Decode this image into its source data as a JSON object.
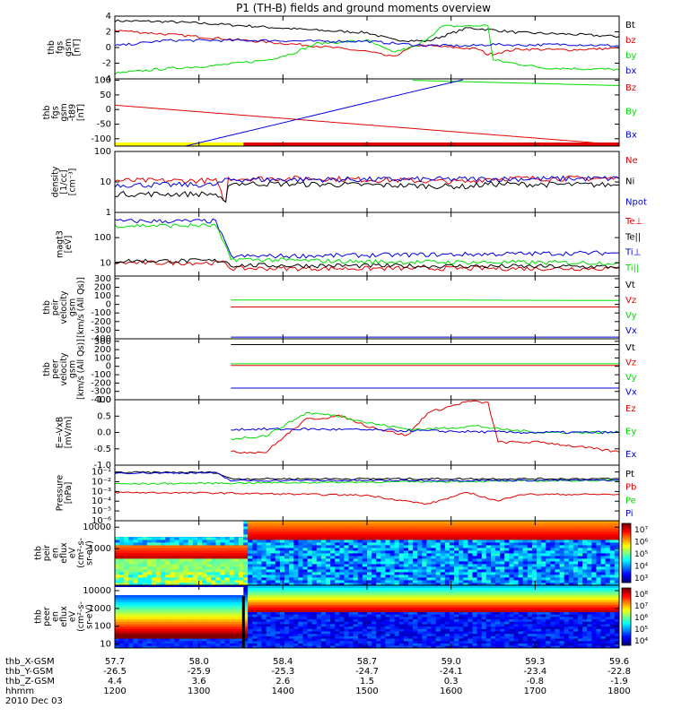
{
  "title": "P1 (TH-B) fields and ground moments overview",
  "date_label": "2010 Dec 03",
  "colors": {
    "black": "#000000",
    "red": "#e00000",
    "green": "#00dd00",
    "blue": "#0000e0",
    "yellow": "#ffff00"
  },
  "footer": {
    "rows": [
      {
        "label": "thb_X-GSM",
        "values": [
          "57.7",
          "58.0",
          "58.4",
          "58.7",
          "59.0",
          "59.3",
          "59.6"
        ]
      },
      {
        "label": "thb_Y-GSM",
        "values": [
          "-26.5",
          "-25.9",
          "-25.3",
          "-24.7",
          "-24.1",
          "-23.4",
          "-22.8"
        ]
      },
      {
        "label": "thb_Z-GSM",
        "values": [
          "4.4",
          "3.6",
          "2.6",
          "1.5",
          "0.3",
          "-0.8",
          "-1.9"
        ]
      },
      {
        "label": "hhmm",
        "values": [
          "1200",
          "1300",
          "1400",
          "1500",
          "1600",
          "1700",
          "1800"
        ]
      }
    ]
  },
  "chart_data": [
    {
      "id": "fgs",
      "type": "line",
      "ylabel": [
        "thb",
        "fgs",
        "gsm",
        "[nT]"
      ],
      "ylim": [
        -4,
        4
      ],
      "ticks": [
        "4",
        "2",
        "0",
        "-2",
        "-4"
      ],
      "x": [
        "1200",
        "1800"
      ],
      "series": [
        {
          "name": "Bt",
          "color": "#000000",
          "values": [
            [
              0,
              3.4
            ],
            [
              0.1,
              3.3
            ],
            [
              0.2,
              3.0
            ],
            [
              0.3,
              2.6
            ],
            [
              0.4,
              2.2
            ],
            [
              0.5,
              1.9
            ],
            [
              0.55,
              1.0
            ],
            [
              0.62,
              0.8
            ],
            [
              0.7,
              2.5
            ],
            [
              0.74,
              2.3
            ],
            [
              0.8,
              1.9
            ],
            [
              0.9,
              1.7
            ],
            [
              1,
              1.4
            ]
          ]
        },
        {
          "name": "bz",
          "color": "#e00000",
          "values": [
            [
              0,
              2.2
            ],
            [
              0.1,
              1.7
            ],
            [
              0.2,
              1.2
            ],
            [
              0.3,
              0.7
            ],
            [
              0.4,
              0.2
            ],
            [
              0.5,
              -0.5
            ],
            [
              0.55,
              -1.2
            ],
            [
              0.6,
              0.3
            ],
            [
              0.72,
              -0.2
            ],
            [
              0.74,
              -0.9
            ],
            [
              0.8,
              -0.2
            ],
            [
              0.9,
              -0.3
            ],
            [
              1,
              -0.1
            ]
          ]
        },
        {
          "name": "by",
          "color": "#00dd00",
          "values": [
            [
              0,
              -3.3
            ],
            [
              0.1,
              -2.7
            ],
            [
              0.2,
              -2.3
            ],
            [
              0.3,
              -1.6
            ],
            [
              0.35,
              -0.8
            ],
            [
              0.4,
              0.5
            ],
            [
              0.5,
              0.9
            ],
            [
              0.55,
              -0.6
            ],
            [
              0.6,
              0.2
            ],
            [
              0.65,
              2.7
            ],
            [
              0.74,
              2.8
            ],
            [
              0.75,
              -1.6
            ],
            [
              0.85,
              -2.6
            ],
            [
              1,
              -2.8
            ]
          ]
        },
        {
          "name": "bx",
          "color": "#0000e0",
          "values": [
            [
              0,
              0.2
            ],
            [
              0.1,
              0.9
            ],
            [
              0.2,
              0.9
            ],
            [
              0.3,
              0.9
            ],
            [
              0.4,
              0.8
            ],
            [
              0.5,
              0.8
            ],
            [
              0.6,
              0.3
            ],
            [
              0.7,
              0.2
            ],
            [
              0.75,
              0.4
            ],
            [
              0.8,
              0.3
            ],
            [
              0.9,
              0.4
            ],
            [
              1,
              0.2
            ]
          ]
        }
      ]
    },
    {
      "id": "fgs_t89",
      "type": "line",
      "ylabel": [
        "thb",
        "fgs",
        "gsm",
        "-t89",
        "[nT]"
      ],
      "ylim": [
        -125,
        105
      ],
      "ticks": [
        "100",
        "50",
        "0",
        "-50",
        "-100"
      ],
      "series": [
        {
          "name": "Bz",
          "color": "#e00000",
          "values": [
            [
              0,
              15
            ],
            [
              1,
              -120
            ]
          ]
        },
        {
          "name": "By",
          "color": "#00dd00",
          "values": [
            [
              0.59,
              100
            ],
            [
              1,
              82
            ]
          ]
        },
        {
          "name": "Bx",
          "color": "#0000e0",
          "values": [
            [
              0.14,
              -125
            ],
            [
              0.69,
              102
            ]
          ]
        }
      ]
    },
    {
      "id": "density",
      "type": "line",
      "ylabel": [
        "density",
        "[1/cc]",
        "[cm^-3]"
      ],
      "ylim": [
        1,
        100
      ],
      "scale": "log",
      "ticks": [
        "100",
        "10",
        "1"
      ],
      "series": [
        {
          "name": "Ne",
          "color": "#e00000",
          "values": [
            [
              0,
              11
            ],
            [
              0.2,
              11
            ],
            [
              0.22,
              2.0
            ],
            [
              0.225,
              13
            ],
            [
              0.4,
              13
            ],
            [
              0.7,
              10
            ],
            [
              0.74,
              13
            ],
            [
              1,
              13
            ]
          ]
        },
        {
          "name": "Ni",
          "color": "#000000",
          "values": [
            [
              0,
              4
            ],
            [
              0.2,
              4
            ],
            [
              0.22,
              1.8
            ],
            [
              0.225,
              9
            ],
            [
              0.5,
              8
            ],
            [
              0.7,
              7
            ],
            [
              0.74,
              8.5
            ],
            [
              1,
              8
            ]
          ]
        },
        {
          "name": "Npot",
          "color": "#0000e0",
          "values": [
            [
              0,
              8
            ],
            [
              0.2,
              8
            ],
            [
              0.225,
              12
            ],
            [
              0.5,
              12
            ],
            [
              1,
              13
            ]
          ]
        }
      ]
    },
    {
      "id": "temp",
      "type": "line",
      "ylabel": [
        "magt3",
        "[eV]"
      ],
      "ylim": [
        3,
        1000
      ],
      "scale": "log",
      "ticks": [
        "100",
        "10"
      ],
      "series": [
        {
          "name": "Te⊥",
          "color": "#e00000",
          "values": [
            [
              0,
              10
            ],
            [
              0.22,
              10
            ],
            [
              0.23,
              6
            ],
            [
              1,
              6
            ]
          ]
        },
        {
          "name": "Te||",
          "color": "#000000",
          "values": [
            [
              0,
              12
            ],
            [
              0.22,
              12
            ],
            [
              0.23,
              8
            ],
            [
              1,
              7
            ]
          ]
        },
        {
          "name": "Ti⊥",
          "color": "#0000e0",
          "values": [
            [
              0,
              450
            ],
            [
              0.2,
              450
            ],
            [
              0.23,
              18
            ],
            [
              0.5,
              20
            ],
            [
              1,
              25
            ]
          ]
        },
        {
          "name": "Ti||",
          "color": "#00dd00",
          "values": [
            [
              0,
              300
            ],
            [
              0.2,
              300
            ],
            [
              0.23,
              14
            ],
            [
              0.5,
              11
            ],
            [
              1,
              10
            ]
          ]
        }
      ]
    },
    {
      "id": "peir",
      "type": "line",
      "ylabel": [
        "thb",
        "peir",
        "velocity",
        "gsm",
        "[km/s (All Qs)]"
      ],
      "ylim": [
        -400,
        330
      ],
      "ticks": [
        "300",
        "200",
        "100",
        "0",
        "-100",
        "-200",
        "-300",
        "-400"
      ],
      "series": [
        {
          "name": "Vt",
          "color": "#000000",
          "values": [
            [
              0.23,
              330
            ],
            [
              1,
              330
            ]
          ]
        },
        {
          "name": "Vz",
          "color": "#e00000",
          "values": [
            [
              0.23,
              -30
            ],
            [
              1,
              -30
            ]
          ]
        },
        {
          "name": "Vy",
          "color": "#00dd00",
          "values": [
            [
              0.23,
              50
            ],
            [
              0.7,
              50
            ],
            [
              1,
              45
            ]
          ]
        },
        {
          "name": "Vx",
          "color": "#0000e0",
          "values": [
            [
              0.23,
              -380
            ],
            [
              1,
              -380
            ]
          ]
        }
      ]
    },
    {
      "id": "peer",
      "type": "line",
      "ylabel": [
        "thb",
        "peer",
        "velocity",
        "gsm",
        "[km/s (All Qs)]"
      ],
      "ylim": [
        -400,
        330
      ],
      "ticks": [
        "300",
        "200",
        "100",
        "0",
        "-100",
        "-200",
        "-300",
        "-400"
      ],
      "series": [
        {
          "name": "Vt",
          "color": "#000000",
          "values": [
            [
              0.23,
              260
            ],
            [
              1,
              260
            ]
          ]
        },
        {
          "name": "Vz",
          "color": "#e00000",
          "values": [
            [
              0.23,
              10
            ],
            [
              1,
              10
            ]
          ]
        },
        {
          "name": "Vy",
          "color": "#00dd00",
          "values": [
            [
              0.23,
              30
            ],
            [
              1,
              30
            ]
          ]
        },
        {
          "name": "Vx",
          "color": "#0000e0",
          "values": [
            [
              0.23,
              -260
            ],
            [
              1,
              -260
            ]
          ]
        }
      ]
    },
    {
      "id": "efield",
      "type": "line",
      "ylabel": [
        "E=-VxB",
        "[mV/m]"
      ],
      "ylim": [
        -1,
        1
      ],
      "ticks": [
        "1.0",
        "0.5",
        "0.0",
        "-0.5",
        "-1.0"
      ],
      "series": [
        {
          "name": "Ez",
          "color": "#e00000",
          "values": [
            [
              0.23,
              -0.6
            ],
            [
              0.3,
              -0.6
            ],
            [
              0.33,
              -0.2
            ],
            [
              0.38,
              0.4
            ],
            [
              0.45,
              0.5
            ],
            [
              0.5,
              0.2
            ],
            [
              0.58,
              -0.1
            ],
            [
              0.62,
              0.6
            ],
            [
              0.7,
              0.95
            ],
            [
              0.74,
              0.9
            ],
            [
              0.76,
              -0.3
            ],
            [
              0.85,
              -0.3
            ],
            [
              1,
              -0.6
            ]
          ]
        },
        {
          "name": "Ey",
          "color": "#00dd00",
          "values": [
            [
              0.23,
              -0.2
            ],
            [
              0.3,
              -0.1
            ],
            [
              0.38,
              0.6
            ],
            [
              0.45,
              0.5
            ],
            [
              0.5,
              0.3
            ],
            [
              0.58,
              0.1
            ],
            [
              0.62,
              0.1
            ],
            [
              0.72,
              0.2
            ],
            [
              0.76,
              0.1
            ],
            [
              0.85,
              0.0
            ],
            [
              1,
              0.0
            ]
          ]
        },
        {
          "name": "Ex",
          "color": "#0000e0",
          "values": [
            [
              0.23,
              0.1
            ],
            [
              0.4,
              0.1
            ],
            [
              0.6,
              0.05
            ],
            [
              0.8,
              0.0
            ],
            [
              1,
              0.0
            ]
          ]
        }
      ]
    },
    {
      "id": "pressure",
      "type": "line",
      "ylabel": [
        "Pressure",
        "[nPa]"
      ],
      "ylim": [
        1e-06,
        0.5
      ],
      "scale": "log",
      "ticks": [
        "10^0",
        "10^-1",
        "10^-2",
        "10^-3",
        "10^-4",
        "10^-5",
        "10^-6"
      ],
      "series": [
        {
          "name": "Pt",
          "color": "#000000",
          "values": [
            [
              0,
              0.09
            ],
            [
              0.2,
              0.09
            ],
            [
              0.23,
              0.02
            ],
            [
              1,
              0.02
            ]
          ]
        },
        {
          "name": "Pb",
          "color": "#e00000",
          "values": [
            [
              0,
              0.0008
            ],
            [
              0.2,
              0.0007
            ],
            [
              0.5,
              0.0004
            ],
            [
              0.62,
              5e-05
            ],
            [
              0.7,
              0.0008
            ],
            [
              0.76,
              0.0001
            ],
            [
              0.8,
              0.0005
            ],
            [
              1,
              0.0005
            ]
          ]
        },
        {
          "name": "Pe",
          "color": "#00dd00",
          "values": [
            [
              0,
              0.006
            ],
            [
              1,
              0.014
            ]
          ]
        },
        {
          "name": "Pi",
          "color": "#0000e0",
          "values": [
            [
              0,
              0.08
            ],
            [
              0.2,
              0.08
            ],
            [
              0.23,
              0.013
            ],
            [
              1,
              0.014
            ]
          ]
        }
      ]
    },
    {
      "id": "peir_spec",
      "type": "heatmap",
      "ylabel": [
        "thb",
        "peir",
        "en",
        "eflux",
        "eV",
        "(cm^2-s-",
        "sr-eV)"
      ],
      "ylim": [
        20,
        20000
      ],
      "scale": "log",
      "ticks": [
        "10000",
        "1000"
      ],
      "colorbar_ticks": [
        "10^7",
        "10^6",
        "10^5",
        "10^4",
        "10^3"
      ]
    },
    {
      "id": "peer_spec",
      "type": "heatmap",
      "ylabel": [
        "thb",
        "peer",
        "en",
        "eflux",
        "eV",
        "(cm^2-s-",
        "sr-eV)"
      ],
      "ylim": [
        6,
        20000
      ],
      "scale": "log",
      "ticks": [
        "10000",
        "1000",
        "100",
        "10"
      ],
      "colorbar_ticks": [
        "10^8",
        "10^7",
        "10^6",
        "10^5",
        "10^4"
      ]
    }
  ]
}
